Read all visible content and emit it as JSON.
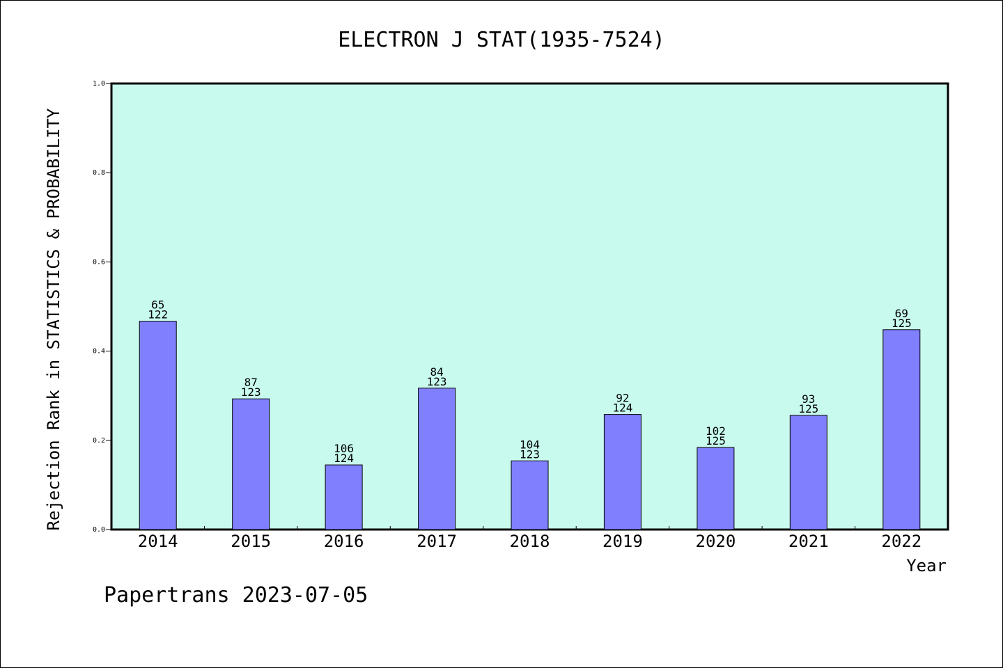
{
  "chart_data": {
    "type": "bar",
    "title": "ELECTRON J STAT(1935-7524)",
    "xlabel": "Year",
    "ylabel": "Rejection Rank in STATISTICS & PROBABILITY",
    "ylim": [
      0,
      1.0
    ],
    "yticks": [
      "0.0",
      "0.2",
      "0.4",
      "0.6",
      "0.8",
      "1.0"
    ],
    "grid": false,
    "categories": [
      "2014",
      "2015",
      "2016",
      "2017",
      "2018",
      "2019",
      "2020",
      "2021",
      "2022"
    ],
    "values": [
      0.467,
      0.293,
      0.145,
      0.317,
      0.154,
      0.258,
      0.184,
      0.256,
      0.448
    ],
    "labels": [
      {
        "rank": "65",
        "total": "122"
      },
      {
        "rank": "87",
        "total": "123"
      },
      {
        "rank": "106",
        "total": "124"
      },
      {
        "rank": "84",
        "total": "123"
      },
      {
        "rank": "104",
        "total": "123"
      },
      {
        "rank": "92",
        "total": "124"
      },
      {
        "rank": "102",
        "total": "125"
      },
      {
        "rank": "93",
        "total": "125"
      },
      {
        "rank": "69",
        "total": "125"
      }
    ],
    "colors": {
      "plot_bg": "#c8fbee",
      "bar": "#8080ff",
      "bar_stroke": "#000000"
    }
  },
  "footer": "Papertrans 2023-07-05"
}
